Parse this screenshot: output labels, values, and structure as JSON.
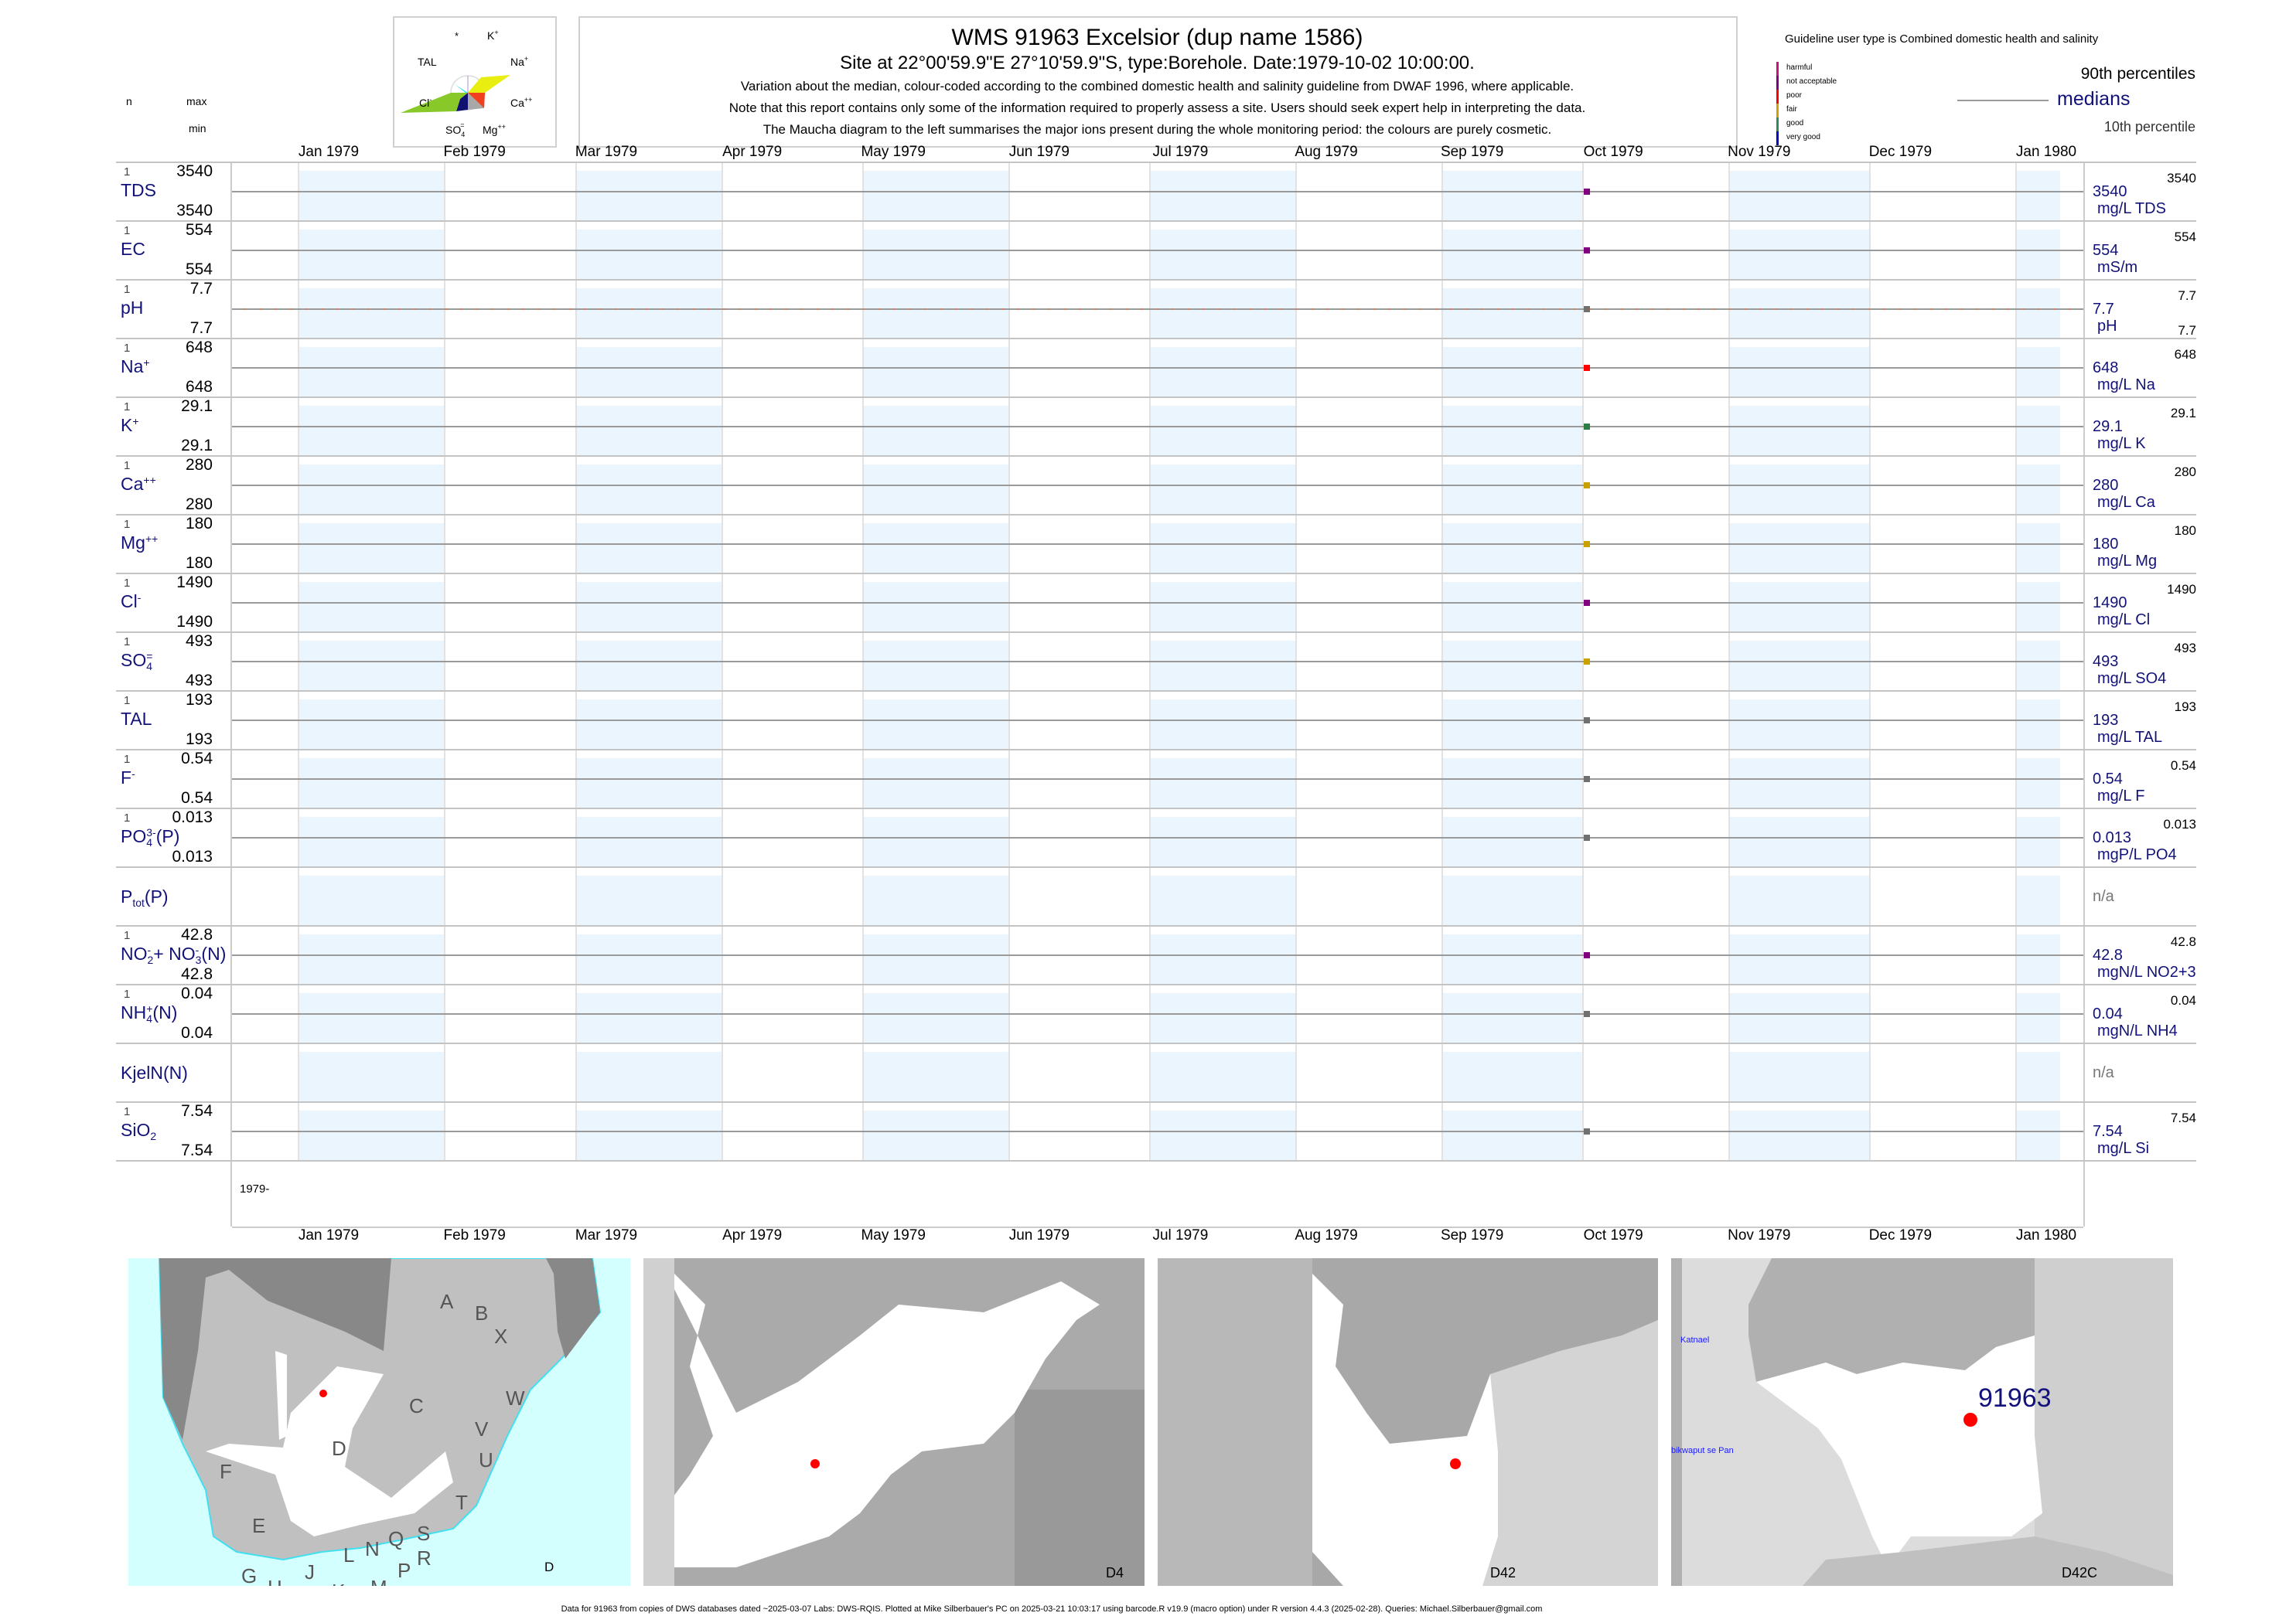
{
  "header": {
    "title": "WMS 91963  Excelsior (dup name 1586)",
    "site": "Site at 22°00'59.9\"E 27°10'59.9\"S, type:Borehole. Date:1979-10-02 10:00:00.",
    "note1": "Variation about the median,  colour-coded according to the combined domestic health and salinity guideline from DWAF 1996, where applicable.",
    "note2": "Note that this report contains only some of the information required to properly assess a site. Users should seek expert help in interpreting the data.",
    "note3": "The Maucha diagram to the left summarises the major ions present during the whole monitoring period: the colours are purely cosmetic."
  },
  "maucha": {
    "labels": {
      "star": "*",
      "k": "K",
      "k_sup": "+",
      "tal": "TAL",
      "na": "Na",
      "na_sup": "+",
      "cl": "Cl",
      "cl_sup": "-",
      "ca": "Ca",
      "ca_sup": "++",
      "so4": "SO",
      "so4_sub": "4",
      "so4_sup": "=",
      "mg": "Mg",
      "mg_sup": "++"
    },
    "colors": {
      "na": "#e8ee10",
      "cl": "#88c828",
      "ca": "#f04020",
      "so4": "#101070",
      "mg": "#a8a8a8",
      "tal": "#30e8f0",
      "k": "#c0a0e0"
    }
  },
  "legend": {
    "guideline": "Guideline user type is Combined domestic health and salinity",
    "classes": [
      {
        "label": "harmful",
        "color": "#d0107a"
      },
      {
        "label": "not acceptable",
        "color": "#800080"
      },
      {
        "label": "poor",
        "color": "#ff0000"
      },
      {
        "label": "fair",
        "color": "#d0a000"
      },
      {
        "label": "good",
        "color": "#2e8b57"
      },
      {
        "label": "very good",
        "color": "#0000cc"
      }
    ],
    "p90": "90th percentiles",
    "medians": "medians",
    "p10": "10th percentile"
  },
  "columns": {
    "n": "n",
    "max": "max",
    "min": "min"
  },
  "axis": {
    "months": [
      "Jan 1979",
      "Feb 1979",
      "Mar 1979",
      "Apr 1979",
      "May 1979",
      "Jun 1979",
      "Jul 1979",
      "Aug 1979",
      "Sep 1979",
      "Oct 1979",
      "Nov 1979",
      "Dec 1979",
      "Jan 1980"
    ],
    "month_dates": [
      "1979-01-01",
      "1979-02-01",
      "1979-03-01",
      "1979-04-01",
      "1979-05-01",
      "1979-06-01",
      "1979-07-01",
      "1979-08-01",
      "1979-09-01",
      "1979-10-01",
      "1979-11-01",
      "1979-12-01",
      "1980-01-01"
    ],
    "range": [
      "1979-01-01",
      "1980-01-01"
    ],
    "year_label": "1979-",
    "sample_date": "1979-10-02"
  },
  "band_color": "#ebf5fe",
  "params": [
    {
      "label": [
        {
          "t": "TDS"
        }
      ],
      "n": "1",
      "max": "3540",
      "min": "3540",
      "median": "3540",
      "unit": "mg/L TDS",
      "rmax": "3540",
      "color": "#800080"
    },
    {
      "label": [
        {
          "t": "EC"
        }
      ],
      "n": "1",
      "max": "554",
      "min": "554",
      "median": "554",
      "unit": "mS/m",
      "rmax": "554",
      "color": "#800080"
    },
    {
      "label": [
        {
          "t": "pH"
        }
      ],
      "n": "1",
      "max": "7.7",
      "min": "7.7",
      "median": "7.7",
      "unit": "pH",
      "rmax": "7.7",
      "rmin": "7.7",
      "color": "#707070",
      "guide_line": "#f07050"
    },
    {
      "label": [
        {
          "t": "Na"
        },
        {
          "sup": "+"
        }
      ],
      "n": "1",
      "max": "648",
      "min": "648",
      "median": "648",
      "unit": "mg/L Na",
      "rmax": "648",
      "color": "#ff0000"
    },
    {
      "label": [
        {
          "t": "K"
        },
        {
          "sup": "+"
        }
      ],
      "n": "1",
      "max": "29.1",
      "min": "29.1",
      "median": "29.1",
      "unit": "mg/L K",
      "rmax": "29.1",
      "color": "#2e7d46"
    },
    {
      "label": [
        {
          "t": "Ca"
        },
        {
          "sup": "++"
        }
      ],
      "n": "1",
      "max": "280",
      "min": "280",
      "median": "280",
      "unit": "mg/L Ca",
      "rmax": "280",
      "color": "#c8a000"
    },
    {
      "label": [
        {
          "t": "Mg"
        },
        {
          "sup": "++"
        }
      ],
      "n": "1",
      "max": "180",
      "min": "180",
      "median": "180",
      "unit": "mg/L Mg",
      "rmax": "180",
      "color": "#c8a000"
    },
    {
      "label": [
        {
          "t": "Cl"
        },
        {
          "sup": "-"
        }
      ],
      "n": "1",
      "max": "1490",
      "min": "1490",
      "median": "1490",
      "unit": "mg/L Cl",
      "rmax": "1490",
      "color": "#800080"
    },
    {
      "label": [
        {
          "t": "SO"
        },
        {
          "sub": "4",
          "sup": "="
        }
      ],
      "n": "1",
      "max": "493",
      "min": "493",
      "median": "493",
      "unit": "mg/L SO4",
      "rmax": "493",
      "color": "#c8a000"
    },
    {
      "label": [
        {
          "t": "TAL"
        }
      ],
      "n": "1",
      "max": "193",
      "min": "193",
      "median": "193",
      "unit": "mg/L TAL",
      "rmax": "193",
      "color": "#707070"
    },
    {
      "label": [
        {
          "t": "F"
        },
        {
          "sup": "-"
        }
      ],
      "n": "1",
      "max": "0.54",
      "min": "0.54",
      "median": "0.54",
      "unit": "mg/L F",
      "rmax": "0.54",
      "color": "#707070"
    },
    {
      "label": [
        {
          "t": "PO"
        },
        {
          "sub": "4",
          "sup": "3-"
        },
        {
          "t": "(P)"
        }
      ],
      "n": "1",
      "max": "0.013",
      "min": "0.013",
      "median": "0.013",
      "unit": "mgP/L PO4",
      "rmax": "0.013",
      "color": "#707070"
    },
    {
      "label": [
        {
          "t": "P"
        },
        {
          "sub": "tot"
        },
        {
          "t": "(P)"
        }
      ],
      "na": "n/a"
    },
    {
      "label": [
        {
          "t": "NO"
        },
        {
          "sub": "2",
          "sup": "-"
        },
        {
          "t": "+ NO"
        },
        {
          "sub": "3",
          "sup": "-"
        },
        {
          "t": "(N)"
        }
      ],
      "n": "1",
      "max": "42.8",
      "min": "42.8",
      "median": "42.8",
      "unit": "mgN/L NO2+3",
      "rmax": "42.8",
      "color": "#800080"
    },
    {
      "label": [
        {
          "t": "NH"
        },
        {
          "sub": "4",
          "sup": "+"
        },
        {
          "t": "(N)"
        }
      ],
      "n": "1",
      "max": "0.04",
      "min": "0.04",
      "median": "0.04",
      "unit": "mgN/L NH4",
      "rmax": "0.04",
      "color": "#707070"
    },
    {
      "label": [
        {
          "t": "KjelN(N)"
        }
      ],
      "na": "n/a"
    },
    {
      "label": [
        {
          "t": "SiO"
        },
        {
          "sub": "2"
        }
      ],
      "n": "1",
      "max": "7.54",
      "min": "7.54",
      "median": "7.54",
      "unit": "mg/L Si",
      "rmax": "7.54",
      "color": "#707070"
    }
  ],
  "maps": {
    "map1": {
      "label": "D",
      "regions": [
        "A",
        "B",
        "X",
        "C",
        "W",
        "V",
        "U",
        "D",
        "F",
        "T",
        "E",
        "S",
        "Q",
        "N",
        "R",
        "L",
        "P",
        "G",
        "J",
        "H",
        "K",
        "M"
      ]
    },
    "map2": {
      "label": "D4"
    },
    "map3": {
      "label": "D42"
    },
    "map4": {
      "label": "D42C",
      "site": "91963",
      "place1": "Katnael",
      "place2": "bikwaput se Pan"
    },
    "site_color": "#ff0000"
  },
  "footer": "Data for 91963 from copies of DWS databases dated ~2025-03-07 Labs: DWS-RQIS. Plotted at Mike Silberbauer's PC on 2025-03-21 10:03:17 using barcode.R v19.9 (macro option) under R version 4.4.3 (2025-02-28). Queries: Michael.Silberbauer@gmail.com"
}
